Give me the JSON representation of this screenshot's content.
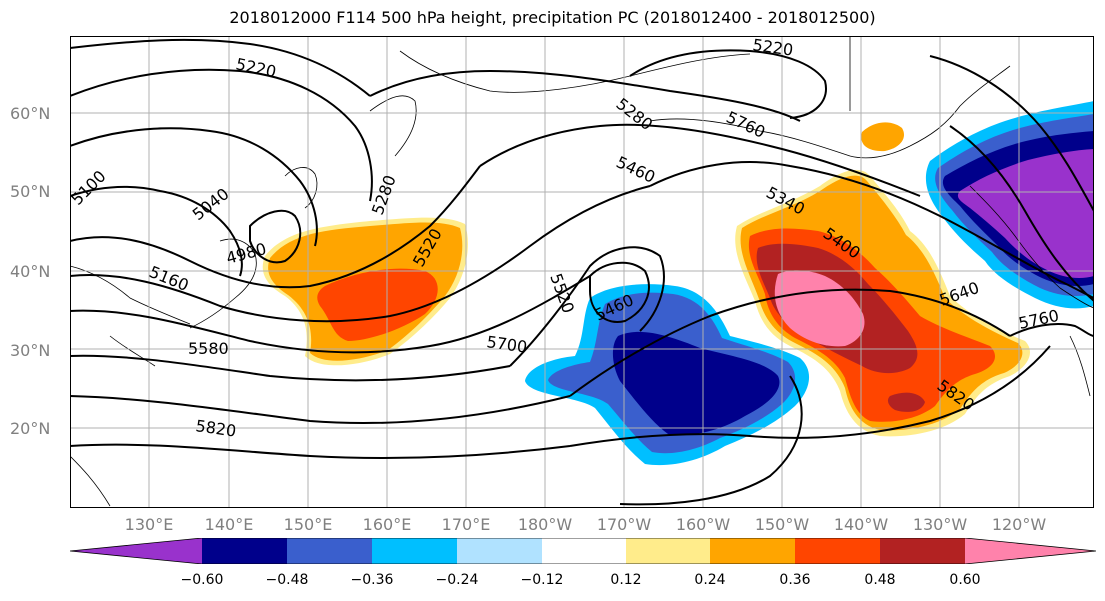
{
  "title": "2018012000 F114 500 hPa height, precipitation PC (2018012400 - 2018012500)",
  "map": {
    "lat_labels": [
      "60°N",
      "50°N",
      "40°N",
      "30°N",
      "20°N"
    ],
    "lon_labels": [
      "130°E",
      "140°E",
      "150°E",
      "160°E",
      "170°E",
      "180°W",
      "170°W",
      "160°W",
      "150°W",
      "140°W",
      "130°W",
      "120°W"
    ],
    "contour_labels": [
      "5220",
      "5220",
      "5280",
      "5760",
      "5460",
      "5340",
      "5400",
      "5100",
      "5040",
      "5280",
      "4980",
      "5520",
      "5160",
      "5520",
      "5460",
      "5580",
      "5700",
      "5640",
      "5760",
      "5820",
      "5820"
    ]
  },
  "colorbar": {
    "colors": [
      "#9932cc",
      "#00008b",
      "#3a5fcd",
      "#00bfff",
      "#b0e2ff",
      "#ffffff",
      "#ffec8b",
      "#ffa500",
      "#ff4500",
      "#b22222",
      "#ff82ab"
    ],
    "tick_labels": [
      "−0.60",
      "−0.48",
      "−0.36",
      "−0.24",
      "−0.12",
      "0.12",
      "0.24",
      "0.36",
      "0.48",
      "0.60"
    ]
  }
}
